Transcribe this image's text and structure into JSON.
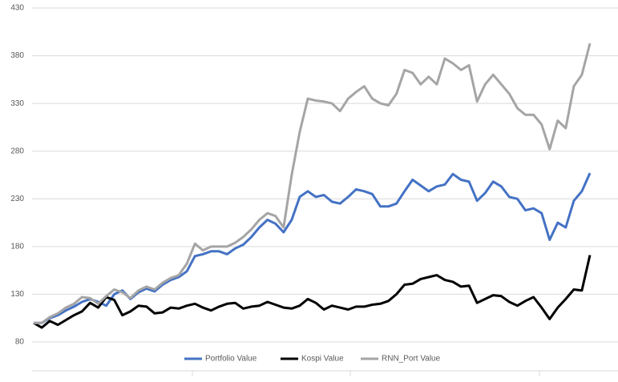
{
  "chart_data": {
    "type": "line",
    "categories": [
      null,
      null,
      null,
      null,
      null,
      null,
      null,
      null,
      null,
      null,
      null,
      null,
      null,
      null,
      null,
      null,
      null,
      null,
      null,
      null,
      null,
      null,
      null,
      null,
      null,
      null,
      null,
      null,
      null,
      null,
      null,
      null,
      null,
      null,
      null,
      null,
      null,
      null,
      null,
      null,
      null,
      null,
      null,
      null,
      null,
      null,
      null,
      null,
      null,
      null,
      null,
      null,
      null,
      null,
      null,
      null,
      null,
      null,
      null,
      null,
      null,
      null,
      null,
      null,
      null,
      null,
      null,
      null,
      null,
      null
    ],
    "series": [
      {
        "name": "Portfolio Value",
        "color": "#4472c4",
        "values": [
          100,
          100,
          105,
          108,
          113,
          117,
          122,
          125,
          122,
          118,
          130,
          134,
          125,
          132,
          136,
          133,
          140,
          145,
          148,
          154,
          170,
          172,
          175,
          175,
          172,
          178,
          182,
          190,
          200,
          208,
          204,
          195,
          208,
          232,
          238,
          232,
          234,
          227,
          225,
          232,
          240,
          238,
          235,
          222,
          222,
          225,
          238,
          250,
          244,
          238,
          243,
          245,
          256,
          250,
          248,
          228,
          236,
          248,
          243,
          232,
          230,
          218,
          220,
          215,
          187,
          205,
          200,
          228,
          238,
          257
        ]
      },
      {
        "name": "Kospi Value",
        "color": "#000000",
        "values": [
          100,
          95,
          102,
          98,
          103,
          108,
          112,
          121,
          116,
          127,
          124,
          108,
          112,
          118,
          117,
          110,
          111,
          116,
          115,
          118,
          120,
          116,
          113,
          117,
          120,
          121,
          115,
          117,
          118,
          122,
          119,
          116,
          115,
          118,
          125,
          121,
          114,
          118,
          116,
          114,
          117,
          117,
          119,
          120,
          123,
          130,
          140,
          141,
          146,
          148,
          150,
          145,
          143,
          138,
          139,
          121,
          125,
          129,
          128,
          122,
          118,
          123,
          127,
          116,
          104,
          116,
          125,
          135,
          134,
          171
        ]
      },
      {
        "name": "RNN_Port Value",
        "color": "#a5a5a5",
        "values": [
          100,
          100,
          106,
          110,
          116,
          120,
          127,
          126,
          120,
          128,
          135,
          132,
          126,
          134,
          138,
          135,
          142,
          147,
          150,
          162,
          183,
          176,
          180,
          180,
          180,
          184,
          190,
          198,
          208,
          215,
          212,
          200,
          255,
          300,
          335,
          333,
          332,
          330,
          322,
          335,
          342,
          348,
          335,
          330,
          328,
          340,
          365,
          362,
          350,
          358,
          350,
          377,
          372,
          365,
          370,
          332,
          350,
          360,
          350,
          340,
          325,
          318,
          318,
          308,
          282,
          312,
          304,
          348,
          360,
          393
        ]
      }
    ],
    "ylim": [
      80,
      430
    ],
    "yticks": [
      80,
      130,
      180,
      230,
      280,
      330,
      380,
      430
    ],
    "grid": true
  }
}
